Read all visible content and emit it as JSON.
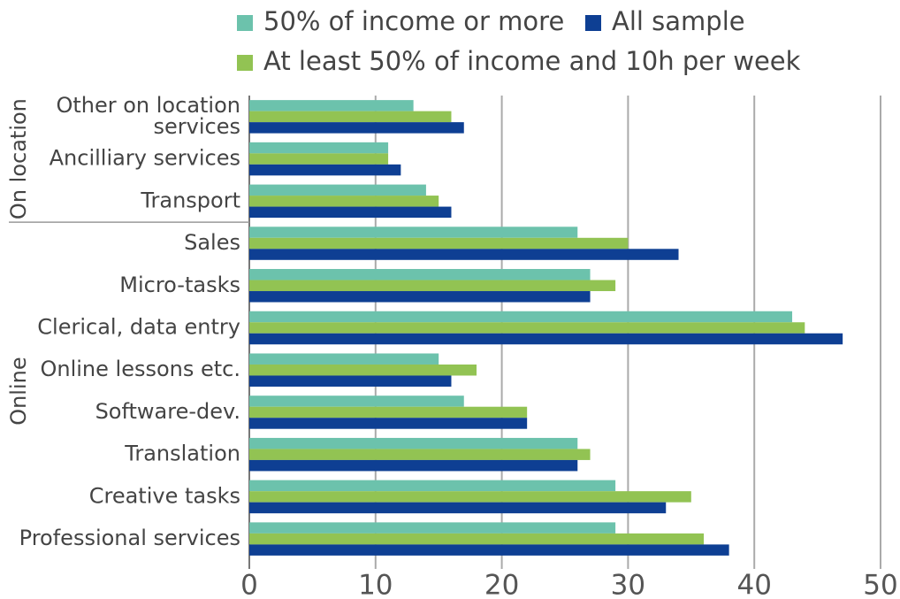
{
  "chart_data": {
    "type": "bar",
    "orientation": "horizontal",
    "categories": [
      "Other on location services",
      "Ancilliary services",
      "Transport",
      "Sales",
      "Micro-tasks",
      "Clerical, data entry",
      "Online lessons etc.",
      "Software-dev.",
      "Translation",
      "Creative tasks",
      "Professional services"
    ],
    "category_groups": [
      "On location",
      "On location",
      "On location",
      "Online",
      "Online",
      "Online",
      "Online",
      "Online",
      "Online",
      "Online",
      "Online"
    ],
    "series": [
      {
        "name": "50% of income or more",
        "color": "#6cc2ac",
        "values": [
          13,
          11,
          14,
          26,
          27,
          43,
          15,
          17,
          26,
          29,
          29
        ]
      },
      {
        "name": "At least 50% of income and 10h per week",
        "color": "#92c353",
        "values": [
          16,
          11,
          15,
          30,
          29,
          44,
          18,
          22,
          27,
          35,
          36
        ]
      },
      {
        "name": "All sample",
        "color": "#0e3f93",
        "values": [
          17,
          12,
          16,
          34,
          27,
          47,
          16,
          22,
          26,
          33,
          38
        ]
      }
    ],
    "xlim": [
      0,
      50
    ],
    "xticks": [
      0,
      10,
      20,
      30,
      40,
      50
    ],
    "grid": true
  }
}
